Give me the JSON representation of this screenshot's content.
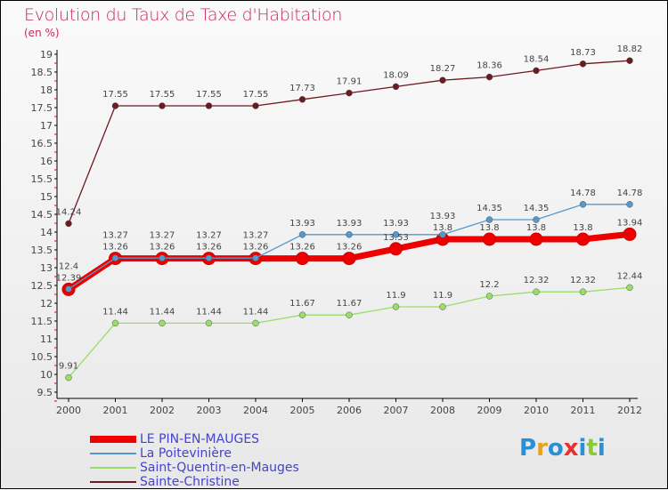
{
  "chart_data": {
    "type": "line",
    "title": "Evolution du Taux de Taxe d'Habitation",
    "subtitle": "(en %)",
    "x": [
      2000,
      2001,
      2002,
      2003,
      2004,
      2005,
      2006,
      2007,
      2008,
      2009,
      2010,
      2011,
      2012
    ],
    "xlabels": [
      "2000",
      "2001",
      "2002",
      "2003",
      "2004",
      "2005",
      "2006",
      "2007",
      "2008",
      "2009",
      "2010",
      "2011",
      "2012"
    ],
    "ylim": [
      9.5,
      19
    ],
    "yticks": [
      "9.5",
      "10",
      "10.5",
      "11",
      "11.5",
      "12",
      "12.5",
      "13",
      "13.5",
      "14",
      "14.5",
      "15",
      "15.5",
      "16",
      "16.5",
      "17",
      "17.5",
      "18",
      "18.5",
      "19"
    ],
    "legend_position": "bottom-left",
    "series": [
      {
        "name": "Sainte-Christine",
        "color": "#6b1a22",
        "width": 1,
        "values": [
          14.24,
          17.55,
          17.55,
          17.55,
          17.55,
          17.73,
          17.91,
          18.09,
          18.27,
          18.36,
          18.54,
          18.73,
          18.82
        ]
      },
      {
        "name": "Saint-Quentin-en-Mauges",
        "color": "#99dd66",
        "width": 1,
        "values": [
          9.91,
          11.44,
          11.44,
          11.44,
          11.44,
          11.67,
          11.67,
          11.9,
          11.9,
          12.2,
          12.32,
          12.32,
          12.44
        ]
      },
      {
        "name": "LE PIN-EN-MAUGES",
        "color": "#ee0000",
        "width": 7,
        "values": [
          12.39,
          13.26,
          13.26,
          13.26,
          13.26,
          13.26,
          13.26,
          13.53,
          13.8,
          13.8,
          13.8,
          13.8,
          13.94
        ]
      },
      {
        "name": "La Poitevinière",
        "color": "#5599cc",
        "width": 1,
        "values": [
          12.4,
          13.27,
          13.27,
          13.27,
          13.27,
          13.93,
          13.93,
          13.93,
          13.93,
          14.35,
          14.35,
          14.78,
          14.78
        ]
      }
    ],
    "legend_order": [
      2,
      3,
      1,
      0
    ]
  },
  "logo": "Proxiti"
}
